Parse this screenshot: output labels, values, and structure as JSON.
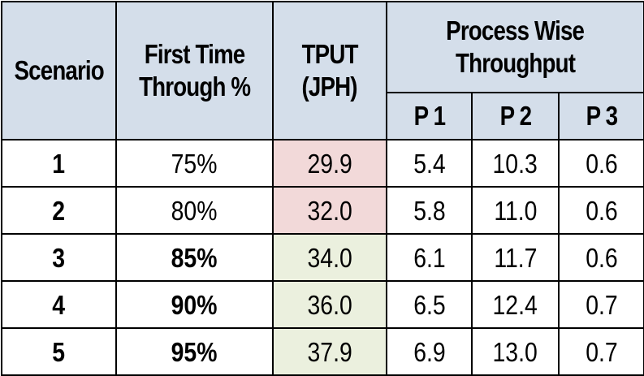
{
  "header": {
    "scenario": "Scenario",
    "ftt_line1": "First Time",
    "ftt_line2": "Through %",
    "tput_line1": "TPUT",
    "tput_line2": "(JPH)",
    "process_line1": "Process Wise",
    "process_line2": "Throughput",
    "p1": "P 1",
    "p2": "P 2",
    "p3": "P 3"
  },
  "rows": [
    {
      "scenario": "1",
      "ftt": "75%",
      "tput": "29.9",
      "p1": "5.4",
      "p2": "10.3",
      "p3": "0.6"
    },
    {
      "scenario": "2",
      "ftt": "80%",
      "tput": "32.0",
      "p1": "5.8",
      "p2": "11.0",
      "p3": "0.6"
    },
    {
      "scenario": "3",
      "ftt": "85%",
      "tput": "34.0",
      "p1": "6.1",
      "p2": "11.7",
      "p3": "0.6"
    },
    {
      "scenario": "4",
      "ftt": "90%",
      "tput": "36.0",
      "p1": "6.5",
      "p2": "12.4",
      "p3": "0.7"
    },
    {
      "scenario": "5",
      "ftt": "95%",
      "tput": "37.9",
      "p1": "6.9",
      "p2": "13.0",
      "p3": "0.7"
    }
  ],
  "colors": {
    "header_bg": "#d4deea",
    "tput_low_bg": "#f2d9d9",
    "tput_high_bg": "#ebf0de"
  }
}
